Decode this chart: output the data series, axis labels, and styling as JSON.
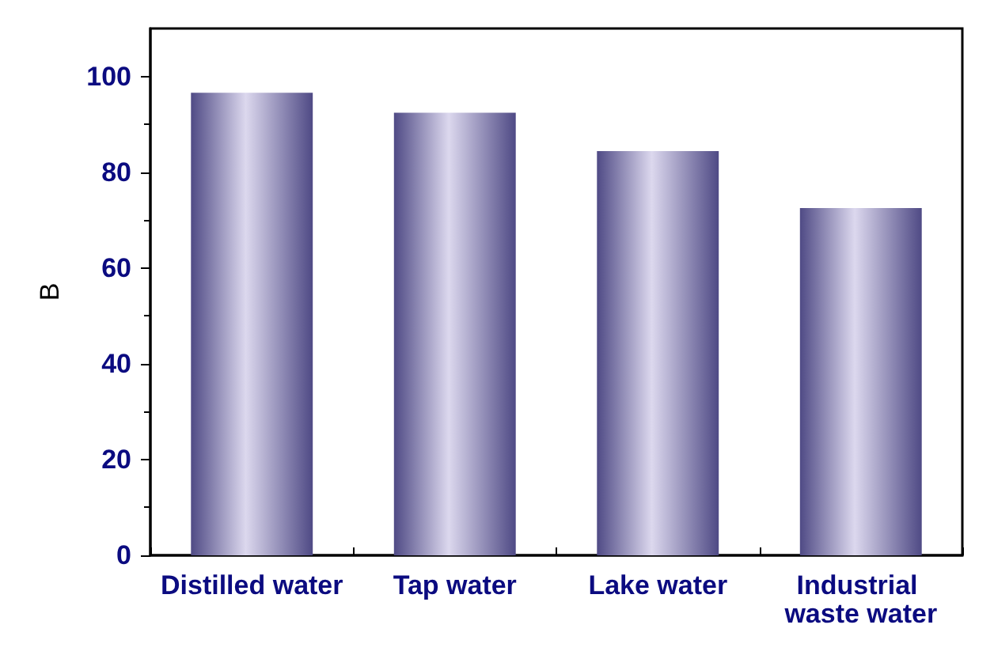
{
  "chart_data": {
    "type": "bar",
    "ylabel": "B",
    "categories": [
      "Distilled water",
      "Tap water",
      "Lake water",
      "Industrial waste water"
    ],
    "values": [
      96.6,
      92.4,
      84.4,
      72.5
    ],
    "color": "#4f4a85",
    "ylim": [
      0,
      110
    ],
    "yticks": [
      0,
      20,
      40,
      60,
      80,
      100
    ]
  }
}
